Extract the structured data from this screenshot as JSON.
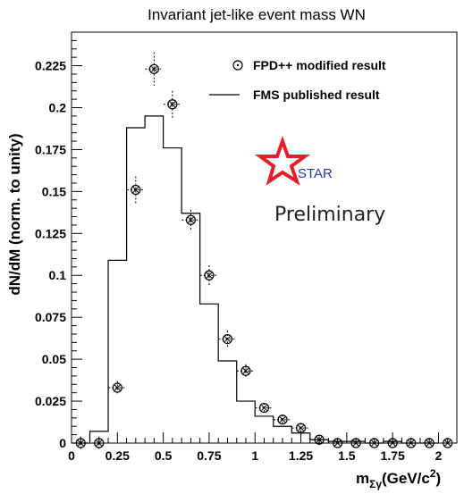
{
  "chart_data": {
    "type": "histogram",
    "title": "Invariant jet-like event mass WN",
    "xlabel": "m",
    "xlabel_sub": "Σγ",
    "xlabel_units": "(GeV/c",
    "xlabel_units_sup": "2",
    "xlabel_units_close": ")",
    "ylabel": "dN/dM (norm. to unity)",
    "xlim": [
      0,
      2.1
    ],
    "ylim": [
      0,
      0.245
    ],
    "x_ticks": [
      "0",
      "0.25",
      "0.5",
      "0.75",
      "1",
      "1.25",
      "1.5",
      "1.75",
      "2"
    ],
    "y_ticks": [
      "0",
      "0.025",
      "0.05",
      "0.075",
      "0.1",
      "0.125",
      "0.15",
      "0.175",
      "0.2",
      "0.225"
    ],
    "legend": [
      {
        "label": "FPD++ modified result",
        "marker": "open-circle"
      },
      {
        "label": "FMS published result",
        "marker": "line"
      }
    ],
    "legend_position": "top-right",
    "series": [
      {
        "name": "FMS published result",
        "style": "step",
        "bin_edges": [
          0,
          0.1,
          0.2,
          0.3,
          0.4,
          0.5,
          0.6,
          0.7,
          0.8,
          0.9,
          1.0,
          1.1,
          1.2,
          1.3,
          1.4,
          1.5,
          1.6,
          1.7,
          1.8,
          1.9,
          2.0
        ],
        "values": [
          0,
          0.007,
          0.109,
          0.188,
          0.195,
          0.176,
          0.137,
          0.083,
          0.049,
          0.025,
          0.016,
          0.01,
          0.006,
          0.002,
          0.001,
          0.001,
          0,
          0.001,
          0,
          0
        ]
      },
      {
        "name": "FPD++ modified result",
        "style": "points",
        "x": [
          0.05,
          0.15,
          0.25,
          0.35,
          0.45,
          0.55,
          0.65,
          0.75,
          0.85,
          0.95,
          1.05,
          1.15,
          1.25,
          1.35,
          1.45,
          1.55,
          1.65,
          1.75,
          1.85,
          1.95,
          2.05
        ],
        "y": [
          0,
          0,
          0.033,
          0.151,
          0.223,
          0.202,
          0.133,
          0.1,
          0.062,
          0.043,
          0.021,
          0.014,
          0.009,
          0.002,
          0,
          0,
          0,
          0,
          0,
          0,
          0
        ],
        "yerr": [
          0.004,
          0.004,
          0.004,
          0.008,
          0.01,
          0.008,
          0.006,
          0.006,
          0.005,
          0.004,
          0.003,
          0.003,
          0.003,
          0.002,
          0.001,
          0.001,
          0.001,
          0.001,
          0.001,
          0.001,
          0.001
        ]
      }
    ],
    "annotations": [
      {
        "text": "STAR",
        "kind": "logo"
      },
      {
        "text": "Preliminary",
        "kind": "stamp"
      }
    ],
    "colors": {
      "logo_star": "#e0202a",
      "logo_text": "#1e3fb0",
      "axis": "#000000"
    },
    "grid": false
  }
}
